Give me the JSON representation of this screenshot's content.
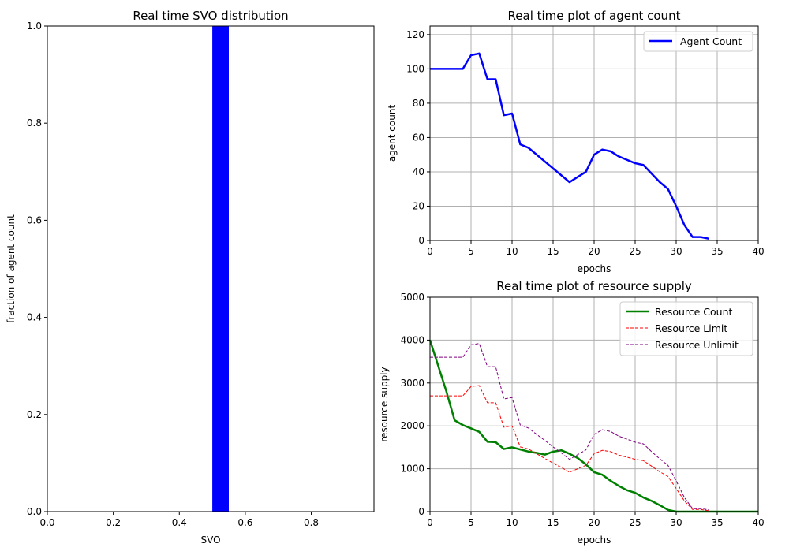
{
  "figure": {
    "background": "#ffffff"
  },
  "chart_data": [
    {
      "id": "svo",
      "type": "bar",
      "title": "Real time SVO distribution",
      "xlabel": "SVO",
      "ylabel": "fraction of agent count",
      "xlim": [
        0,
        0.99
      ],
      "ylim": [
        0,
        1.0
      ],
      "xticks": [
        "0.0",
        "0.2",
        "0.4",
        "0.6",
        "0.8"
      ],
      "xtick_values": [
        0,
        0.2,
        0.4,
        0.6,
        0.8
      ],
      "yticks": [
        "0.0",
        "0.2",
        "0.4",
        "0.6",
        "0.8",
        "1.0"
      ],
      "ytick_values": [
        0,
        0.2,
        0.4,
        0.6,
        0.8,
        1.0
      ],
      "grid": false,
      "bars": [
        {
          "x0": 0.5,
          "x1": 0.55,
          "value": 1.0,
          "color": "#0000ff"
        }
      ]
    },
    {
      "id": "agents",
      "type": "line",
      "title": "Real time plot of agent count",
      "xlabel": "epochs",
      "ylabel": "agent count",
      "xlim": [
        0,
        40
      ],
      "ylim": [
        0,
        125
      ],
      "xticks": [
        "0",
        "5",
        "10",
        "15",
        "20",
        "25",
        "30",
        "35",
        "40"
      ],
      "xtick_values": [
        0,
        5,
        10,
        15,
        20,
        25,
        30,
        35,
        40
      ],
      "yticks": [
        "0",
        "20",
        "40",
        "60",
        "80",
        "100",
        "120"
      ],
      "ytick_values": [
        0,
        20,
        40,
        60,
        80,
        100,
        120
      ],
      "grid": true,
      "legend": "top-right",
      "series": [
        {
          "name": "Agent Count",
          "color": "#0000ff",
          "style": "solid",
          "x": [
            0,
            1,
            2,
            3,
            4,
            5,
            6,
            7,
            8,
            9,
            10,
            11,
            12,
            13,
            14,
            15,
            16,
            17,
            18,
            19,
            20,
            21,
            22,
            23,
            24,
            25,
            26,
            27,
            28,
            29,
            30,
            31,
            32,
            33,
            34
          ],
          "y": [
            100,
            100,
            100,
            100,
            100,
            108,
            109,
            94,
            94,
            73,
            74,
            56,
            54,
            50,
            46,
            42,
            38,
            34,
            37,
            40,
            50,
            53,
            52,
            49,
            47,
            45,
            44,
            39,
            34,
            30,
            20,
            9,
            2,
            2,
            1
          ]
        }
      ]
    },
    {
      "id": "resources",
      "type": "line",
      "title": "Real time plot of resource supply",
      "xlabel": "epochs",
      "ylabel": "resource supply",
      "xlim": [
        0,
        40
      ],
      "ylim": [
        0,
        5000
      ],
      "xticks": [
        "0",
        "5",
        "10",
        "15",
        "20",
        "25",
        "30",
        "35",
        "40"
      ],
      "xtick_values": [
        0,
        5,
        10,
        15,
        20,
        25,
        30,
        35,
        40
      ],
      "yticks": [
        "0",
        "1000",
        "2000",
        "3000",
        "4000",
        "5000"
      ],
      "ytick_values": [
        0,
        1000,
        2000,
        3000,
        4000,
        5000
      ],
      "grid": true,
      "legend": "top-right",
      "series": [
        {
          "name": "Resource Count",
          "color": "#008000",
          "style": "solid",
          "x": [
            0,
            1,
            2,
            3,
            4,
            5,
            6,
            7,
            8,
            9,
            10,
            11,
            12,
            13,
            14,
            15,
            16,
            17,
            18,
            19,
            20,
            21,
            22,
            23,
            24,
            25,
            26,
            27,
            28,
            29,
            30,
            31,
            32,
            33,
            34,
            35,
            36,
            37,
            38,
            39,
            40
          ],
          "y": [
            4000,
            3400,
            2800,
            2130,
            2020,
            1940,
            1860,
            1630,
            1620,
            1460,
            1500,
            1450,
            1400,
            1370,
            1330,
            1400,
            1430,
            1350,
            1250,
            1100,
            920,
            860,
            720,
            600,
            500,
            440,
            330,
            250,
            150,
            40,
            0,
            0,
            0,
            0,
            0,
            0,
            0,
            0,
            0,
            0,
            0
          ]
        },
        {
          "name": "Resource Limit",
          "color": "#ff0000",
          "style": "dashed",
          "x": [
            0,
            1,
            2,
            3,
            4,
            5,
            6,
            7,
            8,
            9,
            10,
            11,
            12,
            13,
            14,
            15,
            16,
            17,
            18,
            19,
            20,
            21,
            22,
            23,
            24,
            25,
            26,
            27,
            28,
            29,
            30,
            31,
            32,
            33,
            34
          ],
          "y": [
            2700,
            2700,
            2700,
            2700,
            2700,
            2920,
            2940,
            2540,
            2540,
            1970,
            2000,
            1510,
            1460,
            1350,
            1240,
            1130,
            1030,
            920,
            1000,
            1080,
            1350,
            1430,
            1400,
            1320,
            1270,
            1220,
            1190,
            1060,
            930,
            820,
            540,
            250,
            50,
            50,
            20
          ]
        },
        {
          "name": "Resource Unlimit",
          "color": "#800080",
          "style": "dashed",
          "x": [
            0,
            1,
            2,
            3,
            4,
            5,
            6,
            7,
            8,
            9,
            10,
            11,
            12,
            13,
            14,
            15,
            16,
            17,
            18,
            19,
            20,
            21,
            22,
            23,
            24,
            25,
            26,
            27,
            28,
            29,
            30,
            31,
            32,
            33,
            34
          ],
          "y": [
            3600,
            3600,
            3600,
            3600,
            3600,
            3890,
            3920,
            3380,
            3380,
            2630,
            2660,
            2020,
            1950,
            1800,
            1660,
            1510,
            1370,
            1220,
            1330,
            1440,
            1800,
            1910,
            1870,
            1760,
            1690,
            1620,
            1580,
            1400,
            1230,
            1080,
            720,
            330,
            70,
            70,
            40
          ]
        }
      ]
    }
  ]
}
